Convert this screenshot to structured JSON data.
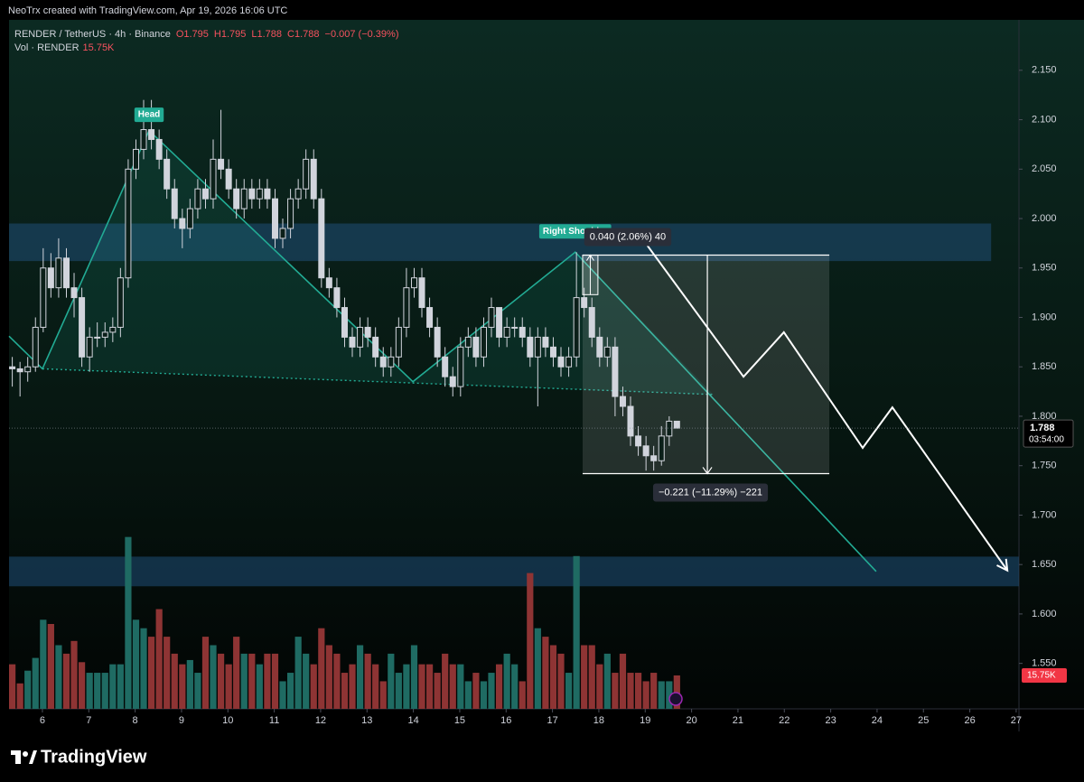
{
  "chart_data": {
    "type": "candlestick",
    "header": {
      "created": "NeoTrx created with TradingView.com, Apr 19, 2026 16:06 UTC",
      "symbol": "RENDER / TetherUS · 4h · Binance",
      "ohlc": [
        "O1.795",
        "H1.795",
        "L1.788",
        "C1.788"
      ],
      "change": "−0.007 (−0.39%)",
      "vol": "Vol · RENDER",
      "vol_value": "15.75K"
    },
    "x": [
      5.35,
      5.517,
      5.683,
      5.85,
      6.017,
      6.183,
      6.35,
      6.517,
      6.683,
      6.85,
      7.017,
      7.183,
      7.35,
      7.517,
      7.683,
      7.85,
      8.017,
      8.183,
      8.35,
      8.517,
      8.683,
      8.85,
      9.017,
      9.183,
      9.35,
      9.517,
      9.683,
      9.85,
      10.017,
      10.183,
      10.35,
      10.517,
      10.683,
      10.85,
      11.017,
      11.183,
      11.35,
      11.517,
      11.683,
      11.85,
      12.017,
      12.183,
      12.35,
      12.517,
      12.683,
      12.85,
      13.017,
      13.183,
      13.35,
      13.517,
      13.683,
      13.85,
      14.017,
      14.183,
      14.35,
      14.517,
      14.683,
      14.85,
      15.017,
      15.183,
      15.35,
      15.517,
      15.683,
      15.85,
      16.017,
      16.183,
      16.35,
      16.517,
      16.683,
      16.85,
      17.017,
      17.183,
      17.35,
      17.517,
      17.683,
      17.85,
      18.017,
      18.183,
      18.35,
      18.517,
      18.683,
      18.85,
      19.017,
      19.183,
      19.35,
      19.517,
      19.683
    ],
    "open": [
      1.85,
      1.848,
      1.845,
      1.85,
      1.89,
      1.95,
      1.93,
      1.96,
      1.93,
      1.92,
      1.86,
      1.88,
      1.88,
      1.885,
      1.89,
      1.94,
      2.05,
      2.07,
      2.09,
      2.08,
      2.06,
      2.03,
      2.0,
      1.99,
      2.01,
      2.03,
      2.02,
      2.06,
      2.05,
      2.03,
      2.01,
      2.03,
      2.02,
      2.03,
      2.02,
      1.98,
      1.99,
      2.02,
      2.03,
      2.06,
      2.02,
      1.94,
      1.93,
      1.91,
      1.88,
      1.87,
      1.89,
      1.88,
      1.86,
      1.85,
      1.86,
      1.89,
      1.93,
      1.94,
      1.91,
      1.89,
      1.86,
      1.84,
      1.83,
      1.87,
      1.88,
      1.86,
      1.89,
      1.91,
      1.88,
      1.89,
      1.89,
      1.88,
      1.86,
      1.88,
      1.87,
      1.86,
      1.85,
      1.86,
      1.92,
      1.91,
      1.88,
      1.86,
      1.87,
      1.82,
      1.81,
      1.78,
      1.77,
      1.76,
      1.755,
      1.78,
      1.795
    ],
    "high": [
      1.86,
      1.855,
      1.86,
      1.9,
      1.97,
      1.965,
      1.98,
      1.97,
      1.945,
      1.93,
      1.89,
      1.895,
      1.895,
      1.9,
      1.95,
      2.06,
      2.08,
      2.12,
      2.12,
      2.09,
      2.07,
      2.04,
      2.01,
      2.02,
      2.04,
      2.04,
      2.08,
      2.11,
      2.06,
      2.04,
      2.04,
      2.04,
      2.04,
      2.04,
      2.03,
      2.0,
      2.03,
      2.04,
      2.07,
      2.07,
      2.03,
      1.95,
      1.94,
      1.92,
      1.89,
      1.9,
      1.9,
      1.89,
      1.87,
      1.87,
      1.9,
      1.95,
      1.95,
      1.95,
      1.92,
      1.9,
      1.87,
      1.85,
      1.88,
      1.89,
      1.89,
      1.9,
      1.92,
      1.91,
      1.9,
      1.9,
      1.9,
      1.89,
      1.89,
      1.89,
      1.88,
      1.87,
      1.87,
      1.966,
      1.93,
      1.92,
      1.89,
      1.88,
      1.88,
      1.83,
      1.82,
      1.79,
      1.78,
      1.77,
      1.79,
      1.8,
      1.795
    ],
    "low": [
      1.83,
      1.82,
      1.835,
      1.845,
      1.885,
      1.92,
      1.92,
      1.92,
      1.9,
      1.85,
      1.845,
      1.87,
      1.87,
      1.875,
      1.88,
      1.93,
      2.04,
      2.06,
      2.07,
      2.05,
      2.02,
      1.99,
      1.97,
      1.98,
      2.0,
      2.01,
      2.01,
      2.04,
      2.02,
      2.0,
      2.0,
      2.01,
      2.01,
      2.01,
      1.97,
      1.97,
      1.98,
      2.01,
      2.02,
      2.01,
      1.93,
      1.92,
      1.9,
      1.87,
      1.86,
      1.86,
      1.87,
      1.85,
      1.84,
      1.84,
      1.85,
      1.88,
      1.92,
      1.9,
      1.88,
      1.85,
      1.83,
      1.82,
      1.82,
      1.86,
      1.85,
      1.85,
      1.88,
      1.87,
      1.87,
      1.88,
      1.87,
      1.85,
      1.81,
      1.86,
      1.85,
      1.84,
      1.84,
      1.85,
      1.9,
      1.87,
      1.85,
      1.85,
      1.8,
      1.8,
      1.77,
      1.76,
      1.745,
      1.745,
      1.75,
      1.77,
      1.788
    ],
    "close": [
      1.848,
      1.845,
      1.85,
      1.89,
      1.95,
      1.93,
      1.96,
      1.93,
      1.92,
      1.86,
      1.88,
      1.88,
      1.885,
      1.89,
      1.94,
      2.05,
      2.07,
      2.09,
      2.08,
      2.06,
      2.03,
      2.0,
      1.99,
      2.01,
      2.03,
      2.02,
      2.06,
      2.05,
      2.03,
      2.01,
      2.03,
      2.02,
      2.03,
      2.02,
      1.98,
      1.99,
      2.02,
      2.03,
      2.06,
      2.02,
      1.94,
      1.93,
      1.91,
      1.88,
      1.87,
      1.89,
      1.88,
      1.86,
      1.85,
      1.86,
      1.89,
      1.93,
      1.94,
      1.91,
      1.89,
      1.86,
      1.84,
      1.83,
      1.87,
      1.88,
      1.86,
      1.89,
      1.91,
      1.88,
      1.89,
      1.89,
      1.88,
      1.86,
      1.88,
      1.87,
      1.86,
      1.85,
      1.86,
      1.92,
      1.91,
      1.88,
      1.86,
      1.87,
      1.82,
      1.81,
      1.78,
      1.77,
      1.76,
      1.755,
      1.78,
      1.795,
      1.788
    ],
    "volume": [
      21,
      12,
      18,
      24,
      42,
      40,
      30,
      26,
      32,
      22,
      17,
      17,
      17,
      21,
      21,
      81,
      42,
      38,
      34,
      47,
      34,
      26,
      21,
      23,
      17,
      34,
      30,
      26,
      21,
      34,
      26,
      26,
      21,
      26,
      26,
      13,
      17,
      34,
      26,
      21,
      38,
      30,
      26,
      17,
      21,
      30,
      26,
      21,
      13,
      26,
      17,
      21,
      30,
      21,
      21,
      17,
      26,
      21,
      21,
      13,
      17,
      13,
      17,
      21,
      26,
      21,
      13,
      64,
      38,
      34,
      30,
      26,
      17,
      72,
      30,
      30,
      21,
      26,
      17,
      26,
      17,
      17,
      13,
      17,
      13,
      13,
      15.75
    ],
    "vlim": [
      0,
      100
    ],
    "up_color": "#d1d4dc",
    "down_color": "#d1d4dc",
    "vol_up_color": "#1f6b63",
    "vol_down_color": "#8e3434",
    "xlim": [
      5.28,
      27.06
    ],
    "xticks": [
      6,
      7,
      8,
      9,
      10,
      11,
      12,
      13,
      14,
      15,
      16,
      17,
      18,
      19,
      20,
      21,
      22,
      23,
      24,
      25,
      26,
      27
    ],
    "ylim": [
      1.504,
      2.201
    ],
    "yticks": [
      {
        "value": 2.15,
        "label": "2.150"
      },
      {
        "value": 2.1,
        "label": "2.100"
      },
      {
        "value": 2.05,
        "label": "2.050"
      },
      {
        "value": 2.0,
        "label": "2.000"
      },
      {
        "value": 1.95,
        "label": "1.950"
      },
      {
        "value": 1.9,
        "label": "1.900"
      },
      {
        "value": 1.85,
        "label": "1.850"
      },
      {
        "value": 1.8,
        "label": "1.800"
      },
      {
        "value": 1.75,
        "label": "1.750"
      },
      {
        "value": 1.7,
        "label": "1.700"
      },
      {
        "value": 1.65,
        "label": "1.650"
      },
      {
        "value": 1.6,
        "label": "1.600"
      },
      {
        "value": 1.55,
        "label": "1.550"
      }
    ],
    "grid": false,
    "last_price": 1.788,
    "countdown": "03:54:00",
    "zones": [
      {
        "from": 5.28,
        "to": 26.46,
        "top": 1.995,
        "bottom": 1.957,
        "color": "#1f4e79"
      },
      {
        "from": 5.28,
        "to": 27.06,
        "top": 1.658,
        "bottom": 1.628,
        "color": "#1f4e79"
      }
    ],
    "pattern": {
      "color": "#22ab94",
      "points": [
        [
          5.28,
          1.881
        ],
        [
          6,
          1.848
        ],
        [
          8.3,
          2.089
        ],
        [
          13.99,
          1.835
        ],
        [
          17.49,
          1.966
        ],
        [
          23.98,
          1.643
        ]
      ],
      "neckline": [
        [
          6,
          1.848
        ],
        [
          20.47,
          1.822
        ]
      ]
    },
    "pattern_labels": [
      {
        "text": "Head",
        "x": 8.3,
        "y": 2.105
      },
      {
        "text": "Right Shoulder",
        "x": 17.49,
        "y": 1.987
      }
    ],
    "projection": {
      "color": "#ffffff",
      "points": [
        [
          19.01,
          1.975
        ],
        [
          21.12,
          1.84
        ],
        [
          21.99,
          1.885
        ],
        [
          23.69,
          1.768
        ],
        [
          24.33,
          1.809
        ],
        [
          26.81,
          1.644
        ]
      ]
    },
    "measure_up": {
      "from": 17.65,
      "to": 17.98,
      "top": 1.963,
      "bottom": 1.923,
      "label": "0.040 (2.06%) 40"
    },
    "measure_down": {
      "from": 17.65,
      "to": 22.97,
      "top": 1.963,
      "bottom": 1.742,
      "arrow_x": 20.34,
      "label": "−0.221 (−11.29%) −221"
    },
    "logo": "TradingView"
  }
}
